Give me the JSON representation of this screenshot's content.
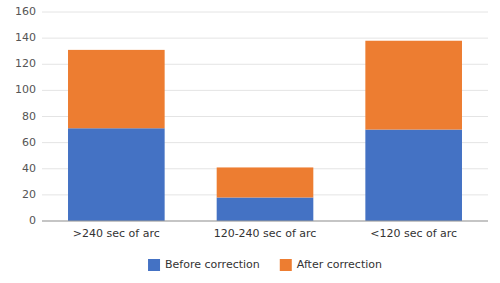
{
  "chart_data": {
    "type": "bar",
    "stacked": true,
    "categories": [
      ">240 sec of arc",
      "120-240 sec of arc",
      "<120 sec of arc"
    ],
    "series": [
      {
        "name": "Before correction",
        "color": "#4472C4",
        "values": [
          71,
          18,
          70
        ]
      },
      {
        "name": "After correction",
        "color": "#ED7D31",
        "values": [
          60,
          23,
          68
        ]
      }
    ],
    "ylim": [
      0,
      160
    ],
    "yticks": [
      0,
      20,
      40,
      60,
      80,
      100,
      120,
      140,
      160
    ],
    "grid": true,
    "legend": "bottom"
  }
}
